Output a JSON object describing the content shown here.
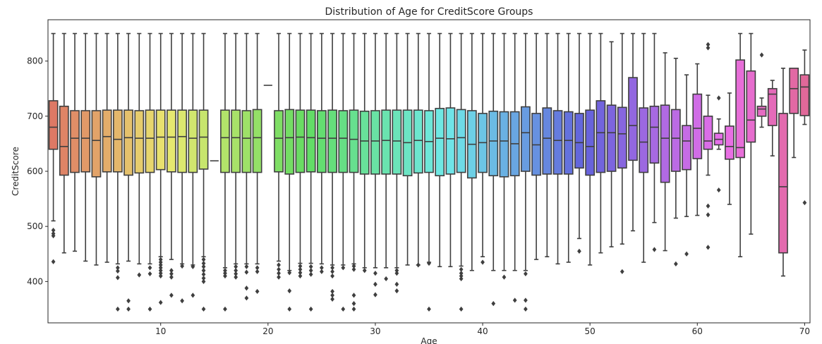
{
  "chart_data": {
    "type": "box",
    "title": "Distribution of Age for CreditScore Groups",
    "xlabel": "Age",
    "ylabel": "CreditScore",
    "xlim": [
      -0.5,
      70.5
    ],
    "ylim": [
      325,
      875
    ],
    "x_ticks": [
      {
        "value": 10,
        "label": "10"
      },
      {
        "value": 20,
        "label": "20"
      },
      {
        "value": 30,
        "label": "30"
      },
      {
        "value": 40,
        "label": "40"
      },
      {
        "value": 50,
        "label": "50"
      },
      {
        "value": 60,
        "label": "60"
      },
      {
        "value": 70,
        "label": "70"
      }
    ],
    "y_ticks": [
      {
        "value": 400,
        "label": "400"
      },
      {
        "value": 500,
        "label": "500"
      },
      {
        "value": 600,
        "label": "600"
      },
      {
        "value": 700,
        "label": "700"
      },
      {
        "value": 800,
        "label": "800"
      }
    ],
    "series": [
      {
        "x": 0,
        "q1": 640,
        "median": 680,
        "q3": 728,
        "wlo": 510,
        "whi": 850,
        "outliers": [
          493,
          487,
          483,
          436
        ]
      },
      {
        "x": 1,
        "q1": 593,
        "median": 645,
        "q3": 718,
        "wlo": 452,
        "whi": 850,
        "outliers": []
      },
      {
        "x": 2,
        "q1": 598,
        "median": 660,
        "q3": 710,
        "wlo": 455,
        "whi": 850,
        "outliers": []
      },
      {
        "x": 3,
        "q1": 599,
        "median": 660,
        "q3": 710,
        "wlo": 437,
        "whi": 850,
        "outliers": []
      },
      {
        "x": 4,
        "q1": 590,
        "median": 656,
        "q3": 710,
        "wlo": 430,
        "whi": 850,
        "outliers": []
      },
      {
        "x": 5,
        "q1": 599,
        "median": 663,
        "q3": 711,
        "wlo": 435,
        "whi": 850,
        "outliers": []
      },
      {
        "x": 6,
        "q1": 599,
        "median": 658,
        "q3": 711,
        "wlo": 432,
        "whi": 850,
        "outliers": [
          425,
          419,
          407,
          350
        ]
      },
      {
        "x": 7,
        "q1": 593,
        "median": 661,
        "q3": 711,
        "wlo": 437,
        "whi": 850,
        "outliers": [
          365,
          350
        ]
      },
      {
        "x": 8,
        "q1": 597,
        "median": 660,
        "q3": 710,
        "wlo": 432,
        "whi": 850,
        "outliers": [
          412
        ]
      },
      {
        "x": 9,
        "q1": 598,
        "median": 660,
        "q3": 711,
        "wlo": 432,
        "whi": 850,
        "outliers": [
          425,
          414,
          350
        ]
      },
      {
        "x": 10,
        "q1": 603,
        "median": 662,
        "q3": 711,
        "wlo": 445,
        "whi": 850,
        "outliers": [
          440,
          435,
          430,
          425,
          420,
          415,
          410,
          362
        ]
      },
      {
        "x": 11,
        "q1": 599,
        "median": 662,
        "q3": 711,
        "wlo": 440,
        "whi": 850,
        "outliers": [
          420,
          414,
          408,
          375
        ]
      },
      {
        "x": 12,
        "q1": 598,
        "median": 663,
        "q3": 711,
        "wlo": 432,
        "whi": 850,
        "outliers": [
          428,
          365
        ]
      },
      {
        "x": 13,
        "q1": 598,
        "median": 660,
        "q3": 711,
        "wlo": 430,
        "whi": 850,
        "outliers": [
          427,
          375
        ]
      },
      {
        "x": 14,
        "q1": 604,
        "median": 662,
        "q3": 711,
        "wlo": 445,
        "whi": 850,
        "outliers": [
          440,
          433,
          427,
          420,
          413,
          406,
          400,
          350
        ]
      },
      {
        "x": 15,
        "q1": 619,
        "median": 619,
        "q3": 619,
        "wlo": 619,
        "whi": 619,
        "outliers": []
      },
      {
        "x": 16,
        "q1": 598,
        "median": 661,
        "q3": 711,
        "wlo": 425,
        "whi": 850,
        "outliers": [
          420,
          415,
          410,
          350
        ]
      },
      {
        "x": 17,
        "q1": 598,
        "median": 661,
        "q3": 711,
        "wlo": 432,
        "whi": 850,
        "outliers": [
          427,
          420,
          414,
          408
        ]
      },
      {
        "x": 18,
        "q1": 598,
        "median": 660,
        "q3": 710,
        "wlo": 432,
        "whi": 850,
        "outliers": [
          427,
          417,
          388,
          370
        ]
      },
      {
        "x": 19,
        "q1": 598,
        "median": 661,
        "q3": 712,
        "wlo": 432,
        "whi": 850,
        "outliers": [
          425,
          418,
          382
        ]
      },
      {
        "x": 20,
        "q1": 756,
        "median": 756,
        "q3": 756,
        "wlo": 756,
        "whi": 756,
        "outliers": []
      },
      {
        "x": 21,
        "q1": 599,
        "median": 660,
        "q3": 710,
        "wlo": 437,
        "whi": 850,
        "outliers": [
          430,
          422,
          415,
          408
        ]
      },
      {
        "x": 22,
        "q1": 595,
        "median": 661,
        "q3": 712,
        "wlo": 420,
        "whi": 850,
        "outliers": [
          416,
          383,
          350
        ]
      },
      {
        "x": 23,
        "q1": 598,
        "median": 662,
        "q3": 711,
        "wlo": 433,
        "whi": 850,
        "outliers": [
          428,
          422,
          416,
          410
        ]
      },
      {
        "x": 24,
        "q1": 599,
        "median": 661,
        "q3": 711,
        "wlo": 433,
        "whi": 850,
        "outliers": [
          427,
          420,
          413,
          350
        ]
      },
      {
        "x": 25,
        "q1": 598,
        "median": 660,
        "q3": 710,
        "wlo": 432,
        "whi": 850,
        "outliers": [
          425,
          418
        ]
      },
      {
        "x": 26,
        "q1": 598,
        "median": 660,
        "q3": 711,
        "wlo": 430,
        "whi": 850,
        "outliers": [
          425,
          418,
          410,
          382,
          375,
          368
        ]
      },
      {
        "x": 27,
        "q1": 598,
        "median": 660,
        "q3": 710,
        "wlo": 430,
        "whi": 850,
        "outliers": [
          425,
          350
        ]
      },
      {
        "x": 28,
        "q1": 598,
        "median": 658,
        "q3": 711,
        "wlo": 432,
        "whi": 850,
        "outliers": [
          428,
          422,
          375,
          360,
          350
        ]
      },
      {
        "x": 29,
        "q1": 595,
        "median": 655,
        "q3": 709,
        "wlo": 425,
        "whi": 850,
        "outliers": [
          420
        ]
      },
      {
        "x": 30,
        "q1": 595,
        "median": 655,
        "q3": 710,
        "wlo": 425,
        "whi": 850,
        "outliers": [
          415,
          395,
          376
        ]
      },
      {
        "x": 31,
        "q1": 595,
        "median": 656,
        "q3": 711,
        "wlo": 425,
        "whi": 850,
        "outliers": [
          405
        ]
      },
      {
        "x": 32,
        "q1": 595,
        "median": 655,
        "q3": 711,
        "wlo": 425,
        "whi": 850,
        "outliers": [
          420,
          415,
          395,
          383
        ]
      },
      {
        "x": 33,
        "q1": 592,
        "median": 652,
        "q3": 711,
        "wlo": 430,
        "whi": 850,
        "outliers": []
      },
      {
        "x": 34,
        "q1": 597,
        "median": 656,
        "q3": 711,
        "wlo": 430,
        "whi": 850,
        "outliers": [
          430
        ]
      },
      {
        "x": 35,
        "q1": 598,
        "median": 654,
        "q3": 710,
        "wlo": 435,
        "whi": 850,
        "outliers": [
          433,
          350
        ]
      },
      {
        "x": 36,
        "q1": 592,
        "median": 660,
        "q3": 714,
        "wlo": 427,
        "whi": 850,
        "outliers": []
      },
      {
        "x": 37,
        "q1": 595,
        "median": 659,
        "q3": 715,
        "wlo": 427,
        "whi": 850,
        "outliers": []
      },
      {
        "x": 38,
        "q1": 598,
        "median": 661,
        "q3": 712,
        "wlo": 428,
        "whi": 850,
        "outliers": [
          422,
          415,
          410,
          405,
          350
        ]
      },
      {
        "x": 39,
        "q1": 588,
        "median": 649,
        "q3": 710,
        "wlo": 420,
        "whi": 850,
        "outliers": []
      },
      {
        "x": 40,
        "q1": 598,
        "median": 652,
        "q3": 705,
        "wlo": 445,
        "whi": 850,
        "outliers": [
          435
        ]
      },
      {
        "x": 41,
        "q1": 592,
        "median": 655,
        "q3": 709,
        "wlo": 420,
        "whi": 850,
        "outliers": [
          360
        ]
      },
      {
        "x": 42,
        "q1": 590,
        "median": 655,
        "q3": 708,
        "wlo": 420,
        "whi": 850,
        "outliers": [
          408
        ]
      },
      {
        "x": 43,
        "q1": 592,
        "median": 650,
        "q3": 708,
        "wlo": 420,
        "whi": 850,
        "outliers": [
          366
        ]
      },
      {
        "x": 44,
        "q1": 600,
        "median": 670,
        "q3": 717,
        "wlo": 420,
        "whi": 850,
        "outliers": [
          414,
          366,
          350
        ]
      },
      {
        "x": 45,
        "q1": 593,
        "median": 648,
        "q3": 705,
        "wlo": 440,
        "whi": 850,
        "outliers": []
      },
      {
        "x": 46,
        "q1": 595,
        "median": 660,
        "q3": 715,
        "wlo": 445,
        "whi": 850,
        "outliers": []
      },
      {
        "x": 47,
        "q1": 595,
        "median": 656,
        "q3": 710,
        "wlo": 432,
        "whi": 850,
        "outliers": []
      },
      {
        "x": 48,
        "q1": 595,
        "median": 656,
        "q3": 708,
        "wlo": 435,
        "whi": 850,
        "outliers": []
      },
      {
        "x": 49,
        "q1": 606,
        "median": 652,
        "q3": 705,
        "wlo": 478,
        "whi": 850,
        "outliers": [
          455
        ]
      },
      {
        "x": 50,
        "q1": 593,
        "median": 645,
        "q3": 711,
        "wlo": 430,
        "whi": 850,
        "outliers": []
      },
      {
        "x": 51,
        "q1": 598,
        "median": 670,
        "q3": 728,
        "wlo": 452,
        "whi": 850,
        "outliers": []
      },
      {
        "x": 52,
        "q1": 600,
        "median": 670,
        "q3": 720,
        "wlo": 463,
        "whi": 835,
        "outliers": []
      },
      {
        "x": 53,
        "q1": 606,
        "median": 668,
        "q3": 716,
        "wlo": 468,
        "whi": 850,
        "outliers": [
          418
        ]
      },
      {
        "x": 54,
        "q1": 620,
        "median": 683,
        "q3": 770,
        "wlo": 492,
        "whi": 850,
        "outliers": []
      },
      {
        "x": 55,
        "q1": 598,
        "median": 653,
        "q3": 715,
        "wlo": 435,
        "whi": 850,
        "outliers": []
      },
      {
        "x": 56,
        "q1": 615,
        "median": 680,
        "q3": 718,
        "wlo": 507,
        "whi": 850,
        "outliers": [
          458
        ]
      },
      {
        "x": 57,
        "q1": 580,
        "median": 660,
        "q3": 720,
        "wlo": 456,
        "whi": 815,
        "outliers": []
      },
      {
        "x": 58,
        "q1": 600,
        "median": 660,
        "q3": 712,
        "wlo": 515,
        "whi": 805,
        "outliers": [
          432
        ]
      },
      {
        "x": 59,
        "q1": 603,
        "median": 655,
        "q3": 683,
        "wlo": 518,
        "whi": 775,
        "outliers": [
          450
        ]
      },
      {
        "x": 60,
        "q1": 623,
        "median": 678,
        "q3": 740,
        "wlo": 520,
        "whi": 795,
        "outliers": []
      },
      {
        "x": 61,
        "q1": 640,
        "median": 655,
        "q3": 700,
        "wlo": 593,
        "whi": 738,
        "outliers": [
          830,
          824,
          537,
          521,
          462
        ]
      },
      {
        "x": 62,
        "q1": 648,
        "median": 658,
        "q3": 669,
        "wlo": 640,
        "whi": 695,
        "outliers": [
          733,
          566
        ]
      },
      {
        "x": 63,
        "q1": 622,
        "median": 645,
        "q3": 682,
        "wlo": 540,
        "whi": 742,
        "outliers": []
      },
      {
        "x": 64,
        "q1": 625,
        "median": 643,
        "q3": 802,
        "wlo": 445,
        "whi": 850,
        "outliers": []
      },
      {
        "x": 65,
        "q1": 653,
        "median": 693,
        "q3": 782,
        "wlo": 486,
        "whi": 850,
        "outliers": []
      },
      {
        "x": 66,
        "q1": 700,
        "median": 713,
        "q3": 718,
        "wlo": 680,
        "whi": 733,
        "outliers": [
          811
        ]
      },
      {
        "x": 67,
        "q1": 683,
        "median": 740,
        "q3": 750,
        "wlo": 628,
        "whi": 765,
        "outliers": []
      },
      {
        "x": 68,
        "q1": 452,
        "median": 572,
        "q3": 705,
        "wlo": 410,
        "whi": 787,
        "outliers": []
      },
      {
        "x": 69,
        "q1": 705,
        "median": 750,
        "q3": 787,
        "wlo": 625,
        "whi": 787,
        "outliers": []
      },
      {
        "x": 70,
        "q1": 701,
        "median": 753,
        "q3": 775,
        "wlo": 685,
        "whi": 820,
        "outliers": [
          543
        ]
      }
    ]
  }
}
